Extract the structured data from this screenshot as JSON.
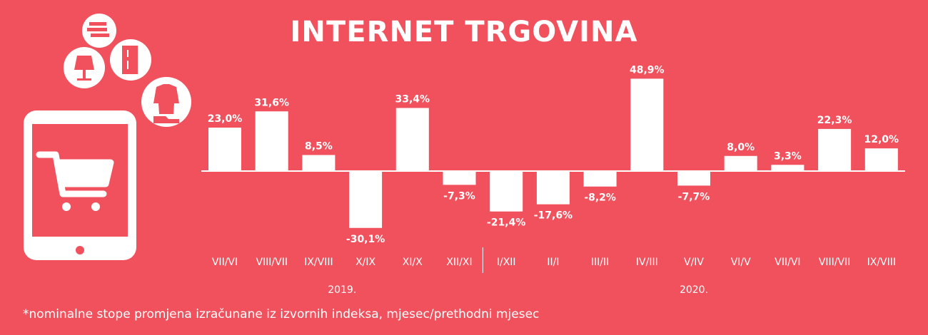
{
  "title": "INTERNET TRGOVINA",
  "footnote": "*nominalne stope promjena izračunane iz izvornih indeksa, mjesec/prethodni mjesec",
  "colors": {
    "background": "#F0515D",
    "bars": "#FFFFFF",
    "text": "#FFFFFF"
  },
  "icons": [
    "tablet-icon",
    "shopping-cart-icon",
    "books-icon",
    "lamp-icon",
    "fridge-icon",
    "clothes-shoes-icon"
  ],
  "chart_data": {
    "type": "bar",
    "categories": [
      "VII/VI",
      "VIII/VII",
      "IX/VIII",
      "X/IX",
      "XI/X",
      "XII/XI",
      "I/XII",
      "II/I",
      "III/II",
      "IV/III",
      "V/IV",
      "VI/V",
      "VII/VI",
      "VIII/VII",
      "IX/VIII"
    ],
    "values": [
      23.0,
      31.6,
      8.5,
      -30.1,
      33.4,
      -7.3,
      -21.4,
      -17.6,
      -8.2,
      48.9,
      -7.7,
      8.0,
      3.3,
      22.3,
      12.0
    ],
    "value_labels": [
      "23,0%",
      "31,6%",
      "8,5%",
      "-30,1%",
      "33,4%",
      "-7,3%",
      "-21,4%",
      "-17,6%",
      "-8,2%",
      "48,9%",
      "-7,7%",
      "8,0%",
      "3,3%",
      "22,3%",
      "12,0%"
    ],
    "year_groups": [
      {
        "label": "2019.",
        "from": 0,
        "to": 5
      },
      {
        "label": "2020.",
        "from": 6,
        "to": 14
      }
    ],
    "grid": false,
    "xlabel": "",
    "ylabel": ""
  }
}
